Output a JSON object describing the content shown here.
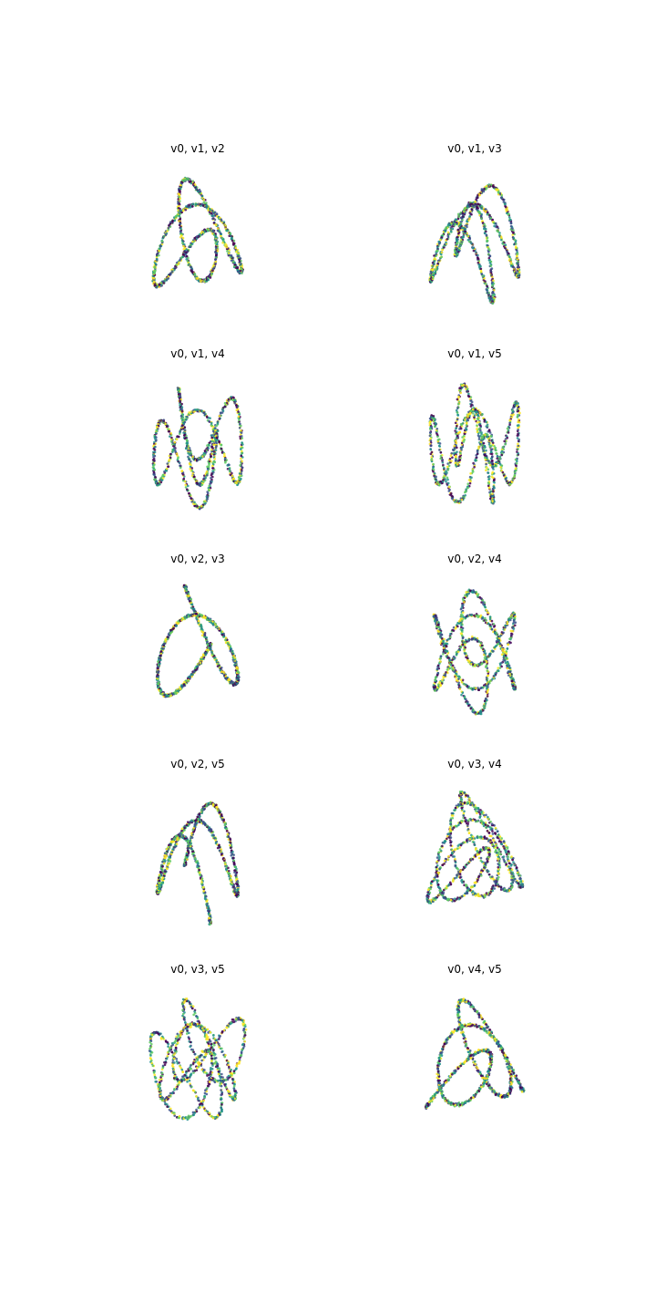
{
  "figure": {
    "background": "#ffffff",
    "colormap": [
      "#440154",
      "#3b528b",
      "#21918c",
      "#5ec962",
      "#fde725"
    ]
  },
  "chart_data": [
    {
      "type": "scatter",
      "title": "v0, v1, v2",
      "dims": [
        "v0",
        "v1",
        "v2"
      ],
      "axes_visible": false,
      "grid": false,
      "curve": {
        "t_range": [
          0,
          6.2832
        ],
        "x": {
          "freq": 1,
          "phase": 0
        },
        "y": {
          "freq": 2,
          "phase": 0
        },
        "z": {
          "freq": 3,
          "phase": 0
        }
      }
    },
    {
      "type": "scatter",
      "title": "v0, v1, v3",
      "dims": [
        "v0",
        "v1",
        "v3"
      ],
      "axes_visible": false,
      "grid": false,
      "curve": {
        "t_range": [
          0,
          6.2832
        ],
        "x": {
          "freq": 1,
          "phase": 0
        },
        "y": {
          "freq": 2,
          "phase": 0
        },
        "z": {
          "freq": 4,
          "phase": 0
        }
      }
    },
    {
      "type": "scatter",
      "title": "v0, v1, v4",
      "dims": [
        "v0",
        "v1",
        "v4"
      ],
      "axes_visible": false,
      "grid": false,
      "curve": {
        "t_range": [
          0,
          6.2832
        ],
        "x": {
          "freq": 1,
          "phase": 0
        },
        "y": {
          "freq": 2,
          "phase": 0
        },
        "z": {
          "freq": 5,
          "phase": 0
        }
      }
    },
    {
      "type": "scatter",
      "title": "v0, v1, v5",
      "dims": [
        "v0",
        "v1",
        "v5"
      ],
      "axes_visible": false,
      "grid": false,
      "curve": {
        "t_range": [
          0,
          6.2832
        ],
        "x": {
          "freq": 1,
          "phase": 0
        },
        "y": {
          "freq": 2,
          "phase": 0
        },
        "z": {
          "freq": 6,
          "phase": 0
        }
      }
    },
    {
      "type": "scatter",
      "title": "v0, v2, v3",
      "dims": [
        "v0",
        "v2",
        "v3"
      ],
      "axes_visible": false,
      "grid": false,
      "curve": {
        "t_range": [
          0,
          6.2832
        ],
        "x": {
          "freq": 1,
          "phase": 0
        },
        "y": {
          "freq": 3,
          "phase": 0
        },
        "z": {
          "freq": 4,
          "phase": 0
        }
      }
    },
    {
      "type": "scatter",
      "title": "v0, v2, v4",
      "dims": [
        "v0",
        "v2",
        "v4"
      ],
      "axes_visible": false,
      "grid": false,
      "curve": {
        "t_range": [
          0,
          6.2832
        ],
        "x": {
          "freq": 1,
          "phase": 0
        },
        "y": {
          "freq": 3,
          "phase": 0
        },
        "z": {
          "freq": 5,
          "phase": 0
        }
      }
    },
    {
      "type": "scatter",
      "title": "v0, v2, v5",
      "dims": [
        "v0",
        "v2",
        "v5"
      ],
      "axes_visible": false,
      "grid": false,
      "curve": {
        "t_range": [
          0,
          6.2832
        ],
        "x": {
          "freq": 1,
          "phase": 0
        },
        "y": {
          "freq": 3,
          "phase": 0
        },
        "z": {
          "freq": 6,
          "phase": 0
        }
      }
    },
    {
      "type": "scatter",
      "title": "v0, v3, v4",
      "dims": [
        "v0",
        "v3",
        "v4"
      ],
      "axes_visible": false,
      "grid": false,
      "curve": {
        "t_range": [
          0,
          6.2832
        ],
        "x": {
          "freq": 1,
          "phase": 0
        },
        "y": {
          "freq": 4,
          "phase": 0
        },
        "z": {
          "freq": 5,
          "phase": 0
        }
      }
    },
    {
      "type": "scatter",
      "title": "v0, v3, v5",
      "dims": [
        "v0",
        "v3",
        "v5"
      ],
      "axes_visible": false,
      "grid": false,
      "curve": {
        "t_range": [
          0,
          6.2832
        ],
        "x": {
          "freq": 1,
          "phase": 0
        },
        "y": {
          "freq": 4,
          "phase": 0
        },
        "z": {
          "freq": 6,
          "phase": 0
        }
      }
    },
    {
      "type": "scatter",
      "title": "v0, v4, v5",
      "dims": [
        "v0",
        "v4",
        "v5"
      ],
      "axes_visible": false,
      "grid": false,
      "curve": {
        "t_range": [
          0,
          6.2832
        ],
        "x": {
          "freq": 1,
          "phase": 0
        },
        "y": {
          "freq": 5,
          "phase": 0
        },
        "z": {
          "freq": 6,
          "phase": 0
        }
      }
    }
  ]
}
